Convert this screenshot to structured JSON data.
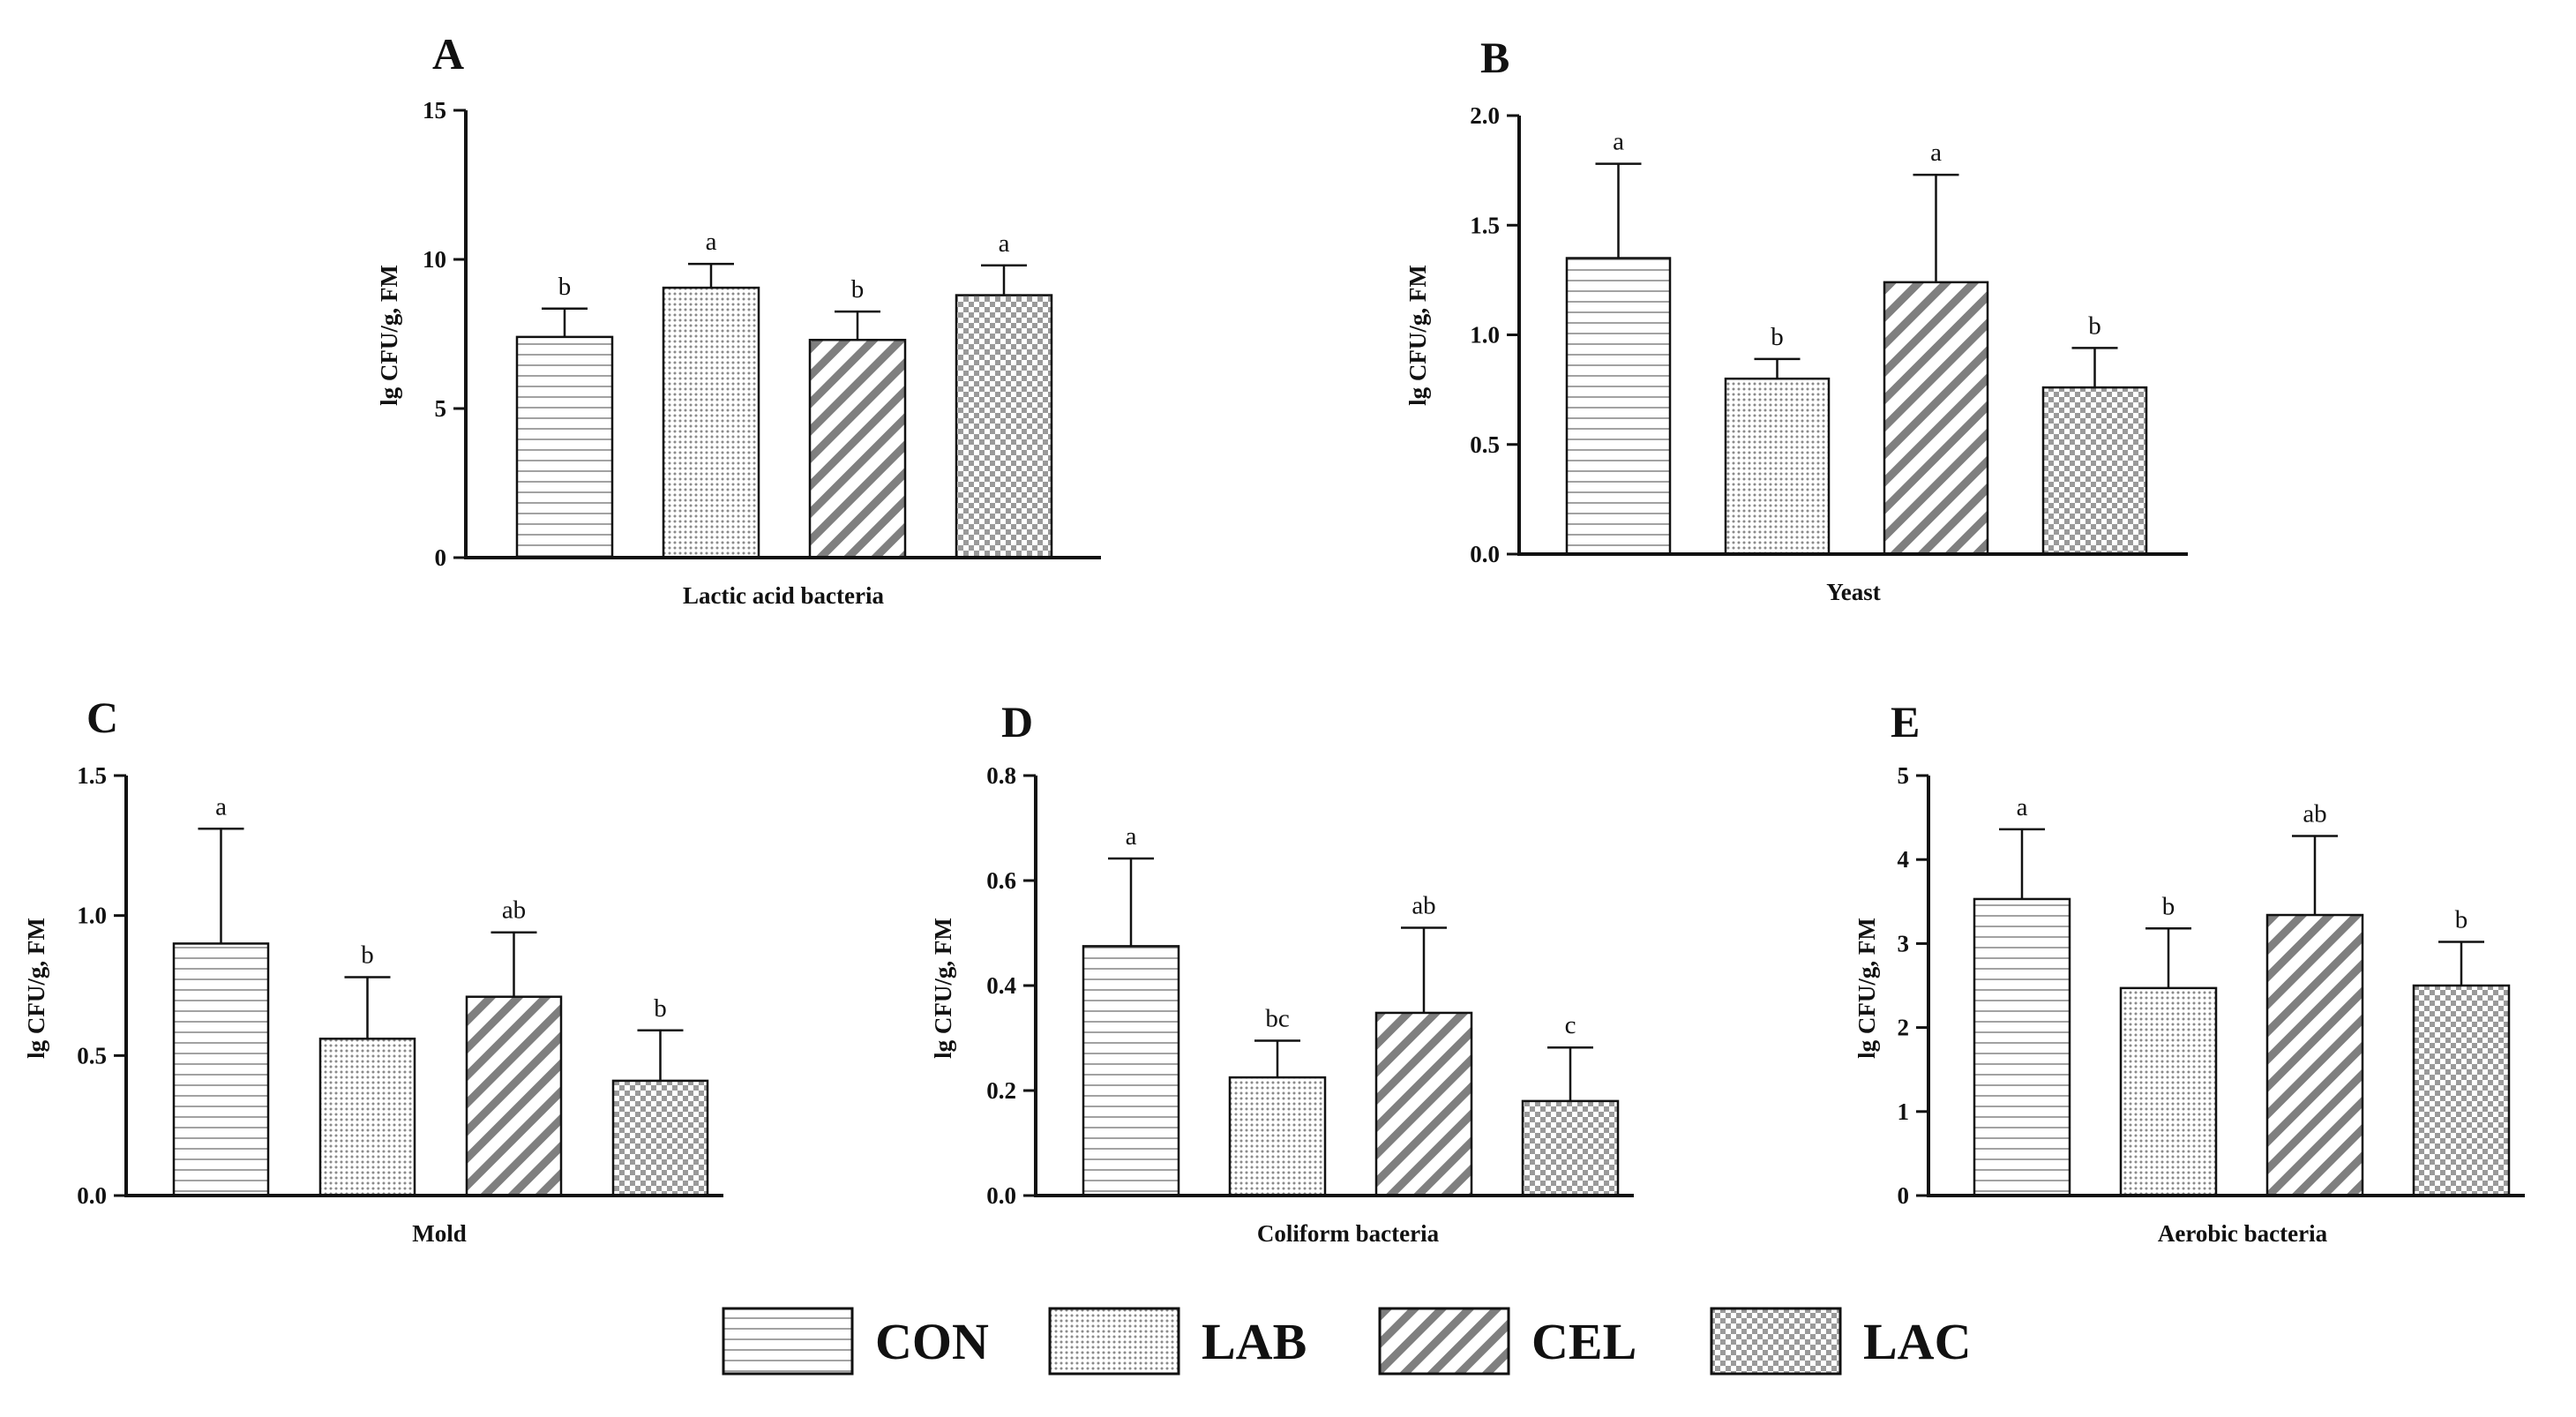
{
  "groups": [
    "CON",
    "LAB",
    "CEL",
    "LAC"
  ],
  "legend": {
    "items": [
      {
        "label": "CON",
        "pattern": "hlines"
      },
      {
        "label": "LAB",
        "pattern": "dots"
      },
      {
        "label": "CEL",
        "pattern": "diag"
      },
      {
        "label": "LAC",
        "pattern": "checker"
      }
    ]
  },
  "colors": {
    "stroke": "#111111",
    "hatch": "#8a8a8a",
    "diag": "#7f7f7f",
    "checker": "#9a9a9a"
  },
  "chart_data": [
    {
      "panel": "A",
      "type": "bar",
      "title": "",
      "xlabel": "Lactic acid bacteria",
      "ylabel": "lg CFU/g, FM",
      "categories": [
        "CON",
        "LAB",
        "CEL",
        "LAC"
      ],
      "values": [
        7.4,
        9.05,
        7.3,
        8.8
      ],
      "errors": [
        0.95,
        0.8,
        0.95,
        1.0
      ],
      "labels": [
        "b",
        "a",
        "b",
        "a"
      ],
      "ylim": [
        0,
        15
      ],
      "yticks": [
        "0",
        "5",
        "10",
        "15"
      ],
      "ytick_values": [
        0,
        5,
        10,
        15
      ]
    },
    {
      "panel": "B",
      "type": "bar",
      "title": "",
      "xlabel": "Yeast",
      "ylabel": "lg CFU/g, FM",
      "categories": [
        "CON",
        "LAB",
        "CEL",
        "LAC"
      ],
      "values": [
        1.35,
        0.8,
        1.24,
        0.76
      ],
      "errors": [
        0.43,
        0.09,
        0.49,
        0.18
      ],
      "labels": [
        "a",
        "b",
        "a",
        "b"
      ],
      "ylim": [
        0,
        2
      ],
      "yticks": [
        "0.0",
        "0.5",
        "1.0",
        "1.5",
        "2.0"
      ],
      "ytick_values": [
        0,
        0.5,
        1.0,
        1.5,
        2.0
      ]
    },
    {
      "panel": "C",
      "type": "bar",
      "title": "",
      "xlabel": "Mold",
      "ylabel": "lg CFU/g, FM",
      "categories": [
        "CON",
        "LAB",
        "CEL",
        "LAC"
      ],
      "values": [
        0.9,
        0.56,
        0.71,
        0.41
      ],
      "errors": [
        0.41,
        0.22,
        0.23,
        0.18
      ],
      "labels": [
        "a",
        "b",
        "ab",
        "b"
      ],
      "ylim": [
        0,
        1.5
      ],
      "yticks": [
        "0.0",
        "0.5",
        "1.0",
        "1.5"
      ],
      "ytick_values": [
        0,
        0.5,
        1.0,
        1.5
      ]
    },
    {
      "panel": "D",
      "type": "bar",
      "title": "",
      "xlabel": "Coliform bacteria",
      "ylabel": "lg CFU/g, FM",
      "categories": [
        "CON",
        "LAB",
        "CEL",
        "LAC"
      ],
      "values": [
        0.475,
        0.225,
        0.348,
        0.18
      ],
      "errors": [
        0.167,
        0.07,
        0.162,
        0.102
      ],
      "labels": [
        "a",
        "bc",
        "ab",
        "c"
      ],
      "ylim": [
        0,
        0.8
      ],
      "yticks": [
        "0.0",
        "0.2",
        "0.4",
        "0.6",
        "0.8"
      ],
      "ytick_values": [
        0,
        0.2,
        0.4,
        0.6,
        0.8
      ]
    },
    {
      "panel": "E",
      "type": "bar",
      "title": "",
      "xlabel": "Aerobic bacteria",
      "ylabel": "lg CFU/g, FM",
      "categories": [
        "CON",
        "LAB",
        "CEL",
        "LAC"
      ],
      "values": [
        3.53,
        2.47,
        3.34,
        2.5
      ],
      "errors": [
        0.83,
        0.71,
        0.94,
        0.52
      ],
      "labels": [
        "a",
        "b",
        "ab",
        "b"
      ],
      "ylim": [
        0,
        5
      ],
      "yticks": [
        "0",
        "1",
        "2",
        "3",
        "4",
        "5"
      ],
      "ytick_values": [
        0,
        1,
        2,
        3,
        4,
        5
      ]
    }
  ]
}
